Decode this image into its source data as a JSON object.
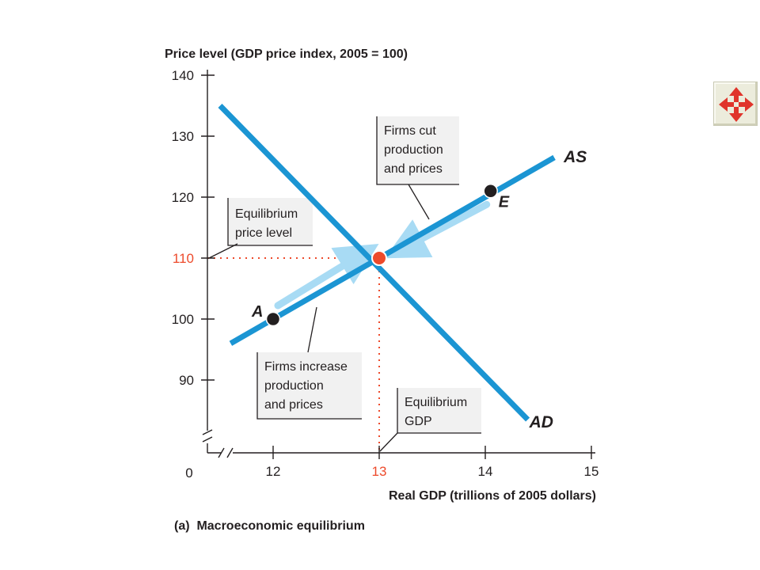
{
  "chart_data": {
    "type": "line",
    "ylabel": "Price level (GDP price index, 2005 = 100)",
    "xlabel": "Real GDP (trillions of 2005 dollars)",
    "caption": "(a)  Macroeconomic equilibrium",
    "origin_label": "0",
    "x_ticks": [
      "12",
      "13",
      "14",
      "15"
    ],
    "y_ticks": [
      "140",
      "130",
      "120",
      "110",
      "100",
      "90"
    ],
    "xlim": [
      11.3,
      15.1
    ],
    "ylim": [
      82,
      141
    ],
    "series": [
      {
        "name": "AS",
        "color": "#1b95d3",
        "points": [
          [
            11.6,
            96
          ],
          [
            14.65,
            126.5
          ]
        ]
      },
      {
        "name": "AD",
        "color": "#1b95d3",
        "points": [
          [
            11.5,
            135
          ],
          [
            14.4,
            83.5
          ]
        ]
      }
    ],
    "equilibrium": {
      "x": 13,
      "y": 110,
      "color": "#ed4a2b"
    },
    "points": [
      {
        "label": "A",
        "x": 12,
        "y": 100
      },
      {
        "label": "E",
        "x": 14.05,
        "y": 121
      }
    ],
    "annotations": [
      {
        "name": "equilibrium-price-level",
        "lines": [
          "Equilibrium",
          "price level"
        ]
      },
      {
        "name": "firms-cut",
        "lines": [
          "Firms cut",
          "production",
          "and prices"
        ]
      },
      {
        "name": "firms-increase",
        "lines": [
          "Firms increase",
          "production",
          "and prices"
        ]
      },
      {
        "name": "equilibrium-gdp",
        "lines": [
          "Equilibrium",
          "GDP"
        ]
      }
    ]
  },
  "nav": {
    "icon": "move-arrows-icon"
  }
}
